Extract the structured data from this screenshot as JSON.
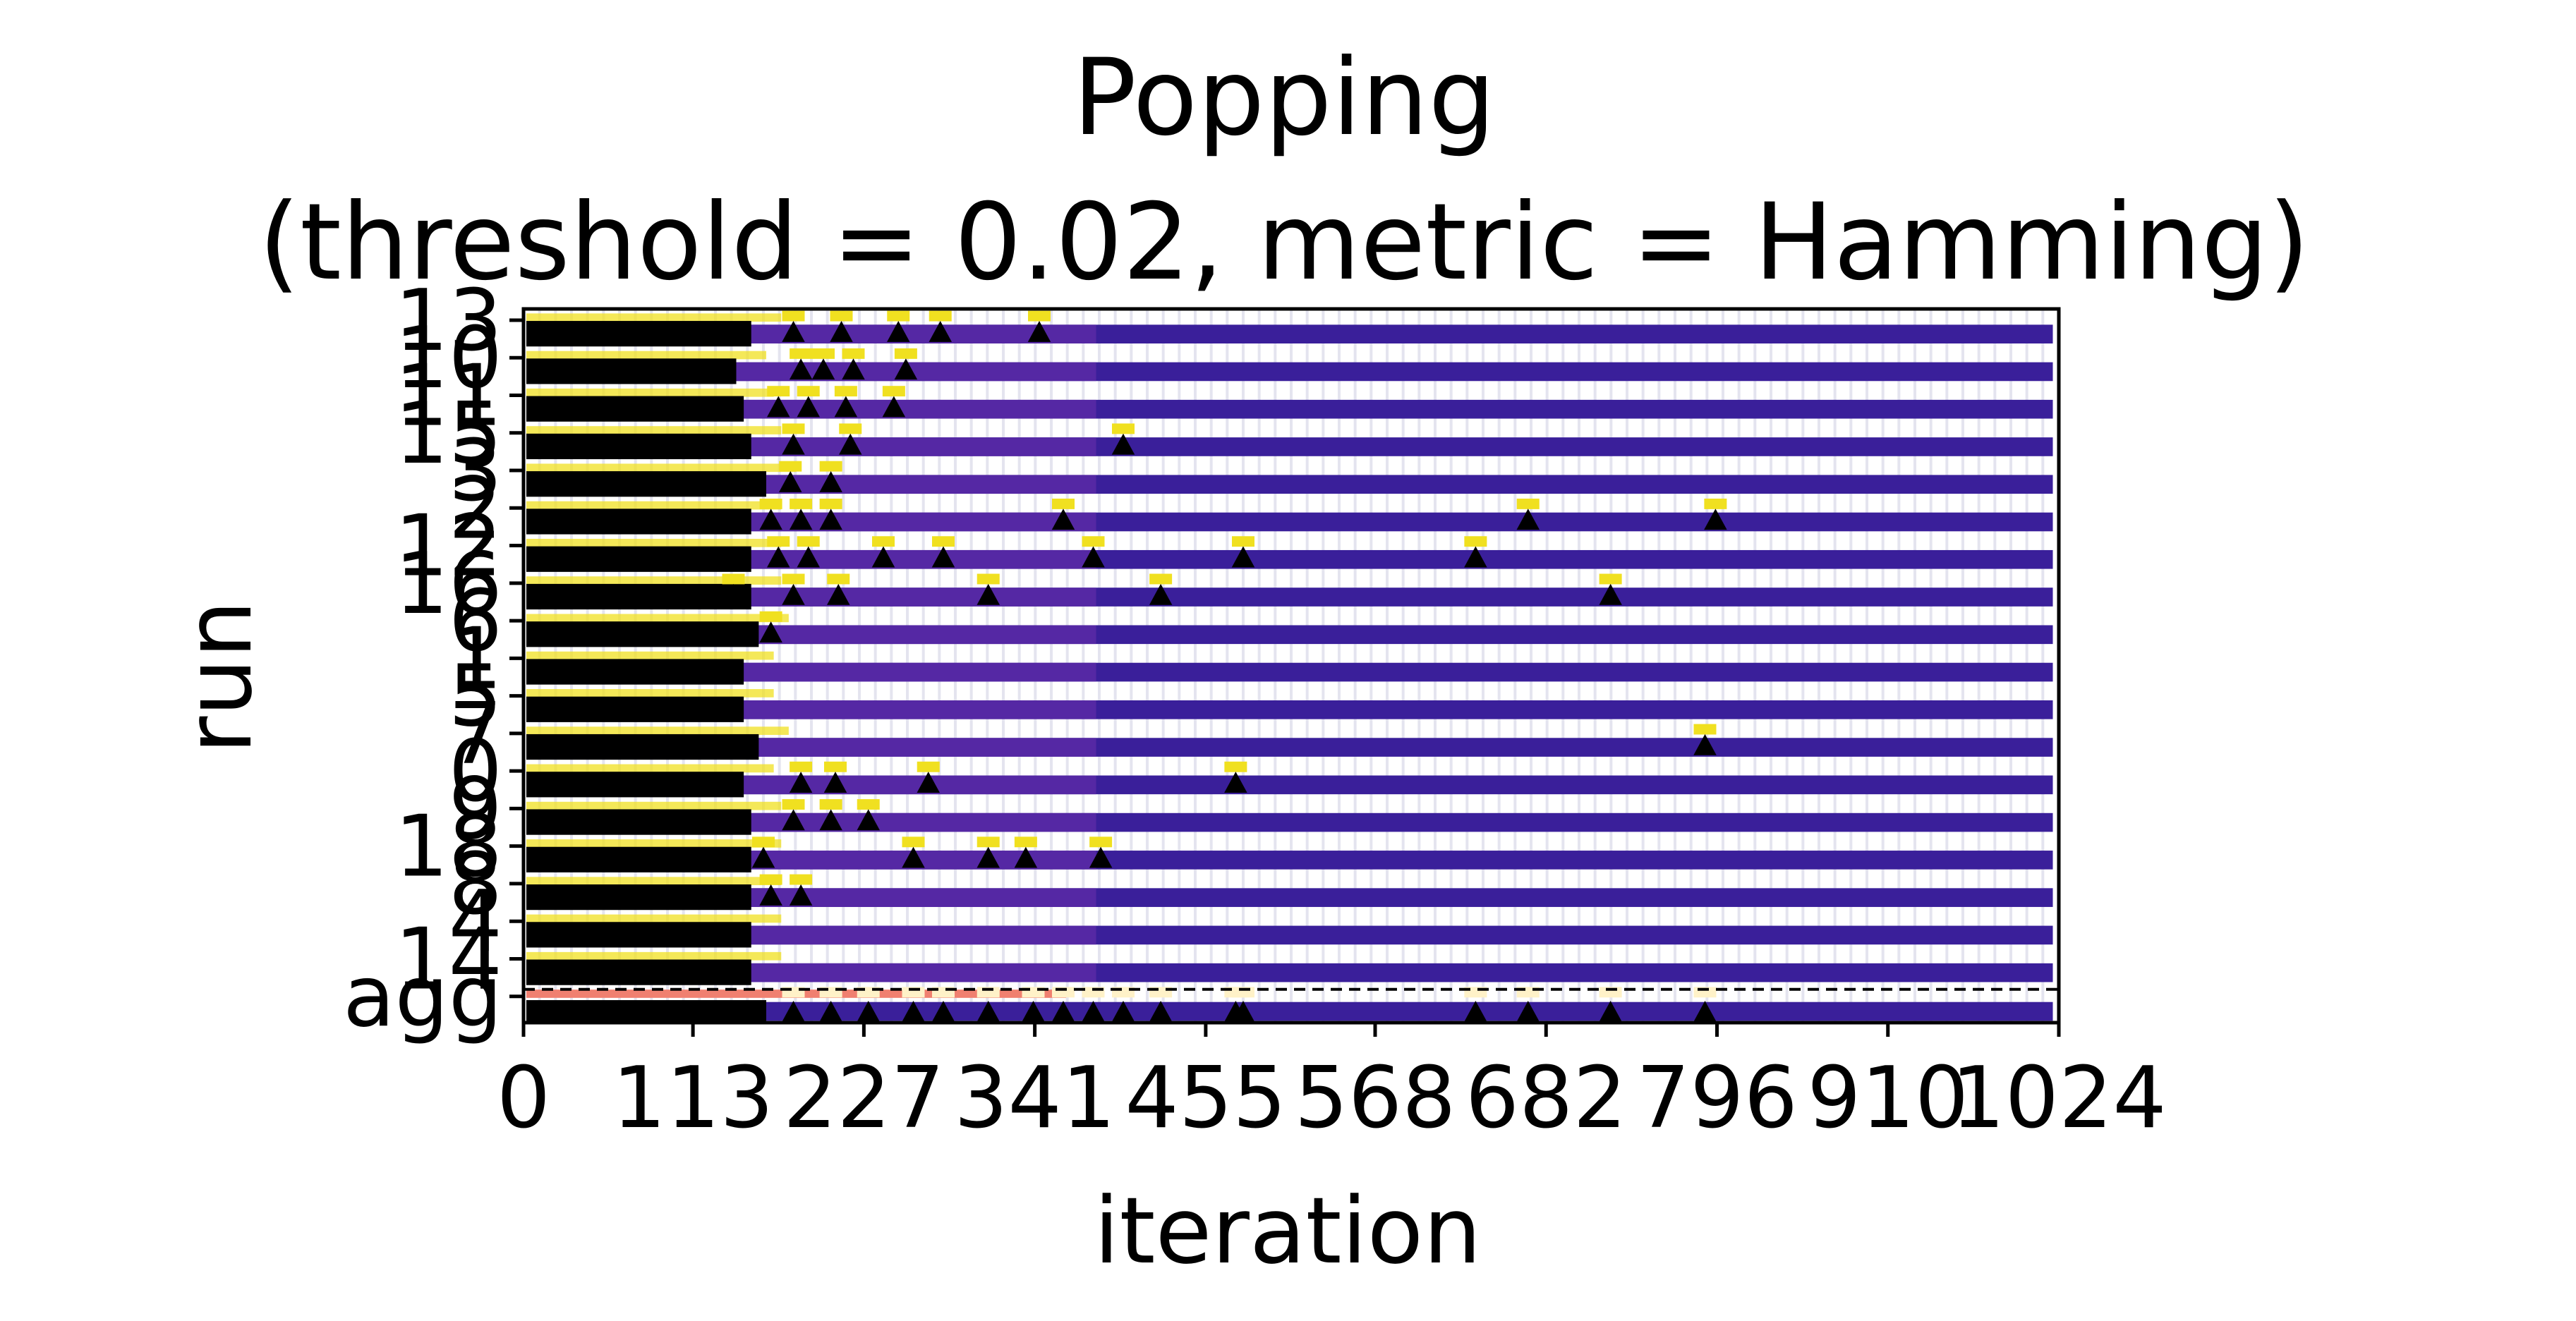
{
  "chart_data": {
    "type": "heatmap",
    "title_line1": "Popping",
    "title_line2": "(threshold = 0.02, metric = Hamming)",
    "xlabel": "iteration",
    "ylabel": "run",
    "xlim": [
      0,
      1024
    ],
    "x_ticks": [
      "0",
      "113",
      "227",
      "341",
      "455",
      "568",
      "682",
      "796",
      "910",
      "1024"
    ],
    "y_ticks": [
      "13",
      "10",
      "11",
      "15",
      "3",
      "2",
      "12",
      "16",
      "6",
      "1",
      "5",
      "7",
      "0",
      "9",
      "18",
      "8",
      "4",
      "14",
      "agg"
    ],
    "colors": {
      "stripe": "#3a1f9a",
      "stripe_early": "#5a2aa6",
      "hot": "#f0e020",
      "marker": "#000000",
      "agg_band": "#f08070"
    },
    "runs": [
      {
        "run": "13",
        "black_end": 150,
        "pops": [
          180,
          212,
          250,
          278,
          344
        ]
      },
      {
        "run": "10",
        "black_end": 140,
        "pops": [
          185,
          200,
          220,
          255
        ]
      },
      {
        "run": "11",
        "black_end": 145,
        "pops": [
          170,
          190,
          215,
          247
        ]
      },
      {
        "run": "15",
        "black_end": 150,
        "pops": [
          180,
          218,
          400
        ]
      },
      {
        "run": "3",
        "black_end": 160,
        "pops": [
          178,
          205
        ]
      },
      {
        "run": "2",
        "black_end": 150,
        "pops": [
          165,
          185,
          205,
          360,
          670,
          795
        ]
      },
      {
        "run": "12",
        "black_end": 150,
        "pops": [
          170,
          190,
          240,
          280,
          380,
          480,
          635
        ]
      },
      {
        "run": "16",
        "black_end": 150,
        "pops": [
          140,
          180,
          210,
          310,
          425,
          725
        ]
      },
      {
        "run": "6",
        "black_end": 155,
        "pops": [
          165
        ]
      },
      {
        "run": "1",
        "black_end": 145,
        "pops": []
      },
      {
        "run": "5",
        "black_end": 145,
        "pops": []
      },
      {
        "run": "7",
        "black_end": 155,
        "pops": [
          788
        ]
      },
      {
        "run": "0",
        "black_end": 145,
        "pops": [
          185,
          208,
          270,
          475
        ]
      },
      {
        "run": "9",
        "black_end": 150,
        "pops": [
          180,
          205,
          230
        ]
      },
      {
        "run": "18",
        "black_end": 150,
        "pops": [
          160,
          260,
          310,
          335,
          385
        ]
      },
      {
        "run": "8",
        "black_end": 150,
        "pops": [
          165,
          185
        ]
      },
      {
        "run": "4",
        "black_end": 150,
        "pops": []
      },
      {
        "run": "14",
        "black_end": 150,
        "pops": []
      }
    ],
    "agg_pops": [
      180,
      205,
      230,
      260,
      280,
      310,
      340,
      360,
      380,
      400,
      425,
      475,
      480,
      635,
      670,
      725,
      788
    ]
  }
}
